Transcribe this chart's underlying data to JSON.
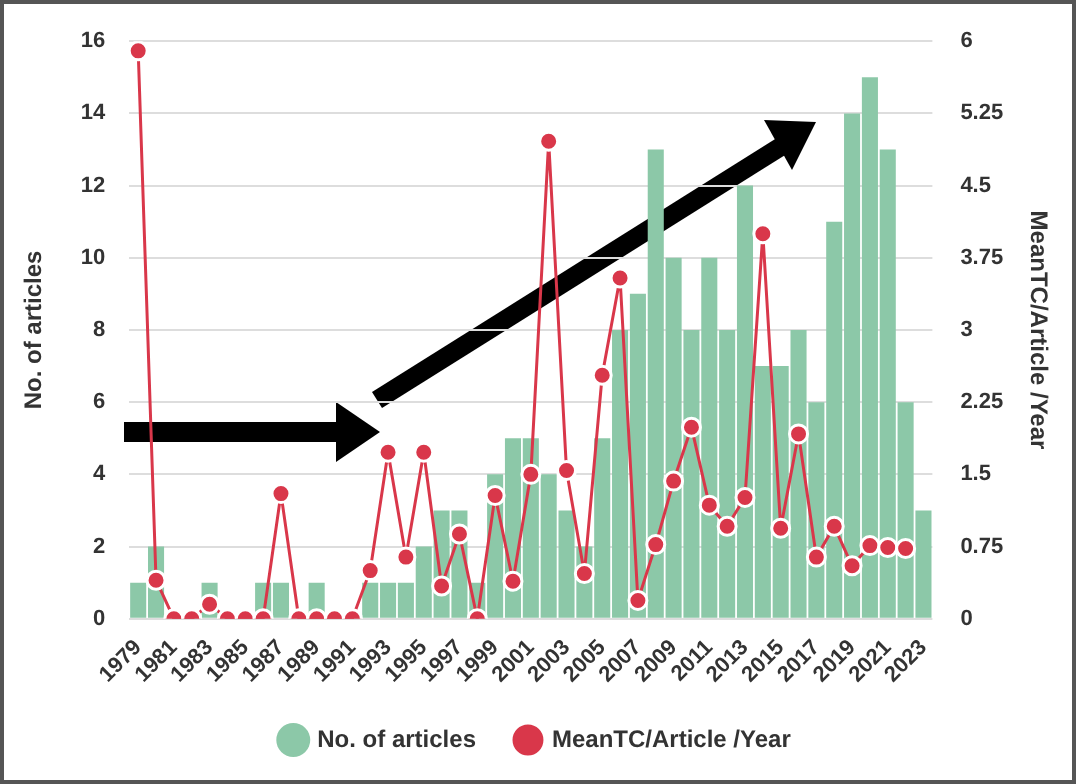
{
  "chart_data": {
    "type": "bar",
    "ylabel": "No. of articles",
    "y2label": "MeanTC/Article /Year",
    "categories": [
      "1979",
      null,
      "1981",
      null,
      "1983",
      null,
      "1985",
      null,
      "1987",
      null,
      "1989",
      null,
      "1991",
      null,
      "1993",
      null,
      "1995",
      null,
      "1997",
      null,
      "1999",
      null,
      "2001",
      null,
      "2003",
      null,
      "2005",
      null,
      "2007",
      null,
      "2009",
      null,
      "2011",
      null,
      "2013",
      null,
      "2015",
      null,
      "2017",
      null,
      "2019",
      null,
      "2021",
      null,
      "2023"
    ],
    "series": [
      {
        "name": "No. of articles",
        "color": "#8cc8a8",
        "values": [
          1,
          2,
          0,
          0,
          1,
          0,
          0,
          1,
          1,
          0,
          1,
          0,
          0,
          1,
          1,
          1,
          2,
          3,
          3,
          1,
          4,
          5,
          5,
          4,
          3,
          2,
          5,
          8,
          9,
          13,
          10,
          8,
          10,
          8,
          12,
          7,
          7,
          8,
          6,
          11,
          14,
          15,
          13,
          6,
          3
        ]
      },
      {
        "name": "MeanTC/Article /Year",
        "type": "line",
        "axis": "y2",
        "color": "#d9374a",
        "values": [
          5.9,
          0.4,
          0,
          0,
          0.15,
          0,
          0,
          0,
          1.3,
          0,
          0,
          0,
          0,
          0.5,
          1.73,
          0.64,
          1.73,
          0.34,
          0.88,
          0,
          1.28,
          0.39,
          1.5,
          4.96,
          1.54,
          0.47,
          2.53,
          3.54,
          0.19,
          0.77,
          1.43,
          1.99,
          1.18,
          0.96,
          1.26,
          4.0,
          0.94,
          1.92,
          0.64,
          0.96,
          0.55,
          0.76,
          0.74,
          0.73,
          null
        ]
      }
    ],
    "ylim": [
      0,
      16
    ],
    "yticks": [
      0,
      2,
      4,
      6,
      8,
      10,
      12,
      14,
      16
    ],
    "y2lim": [
      0,
      6
    ],
    "y2ticks": [
      0,
      0.75,
      1.5,
      2.25,
      3,
      3.75,
      4.5,
      5.25,
      6
    ],
    "grid": "y",
    "legend": "bottom",
    "marker": "circle"
  }
}
